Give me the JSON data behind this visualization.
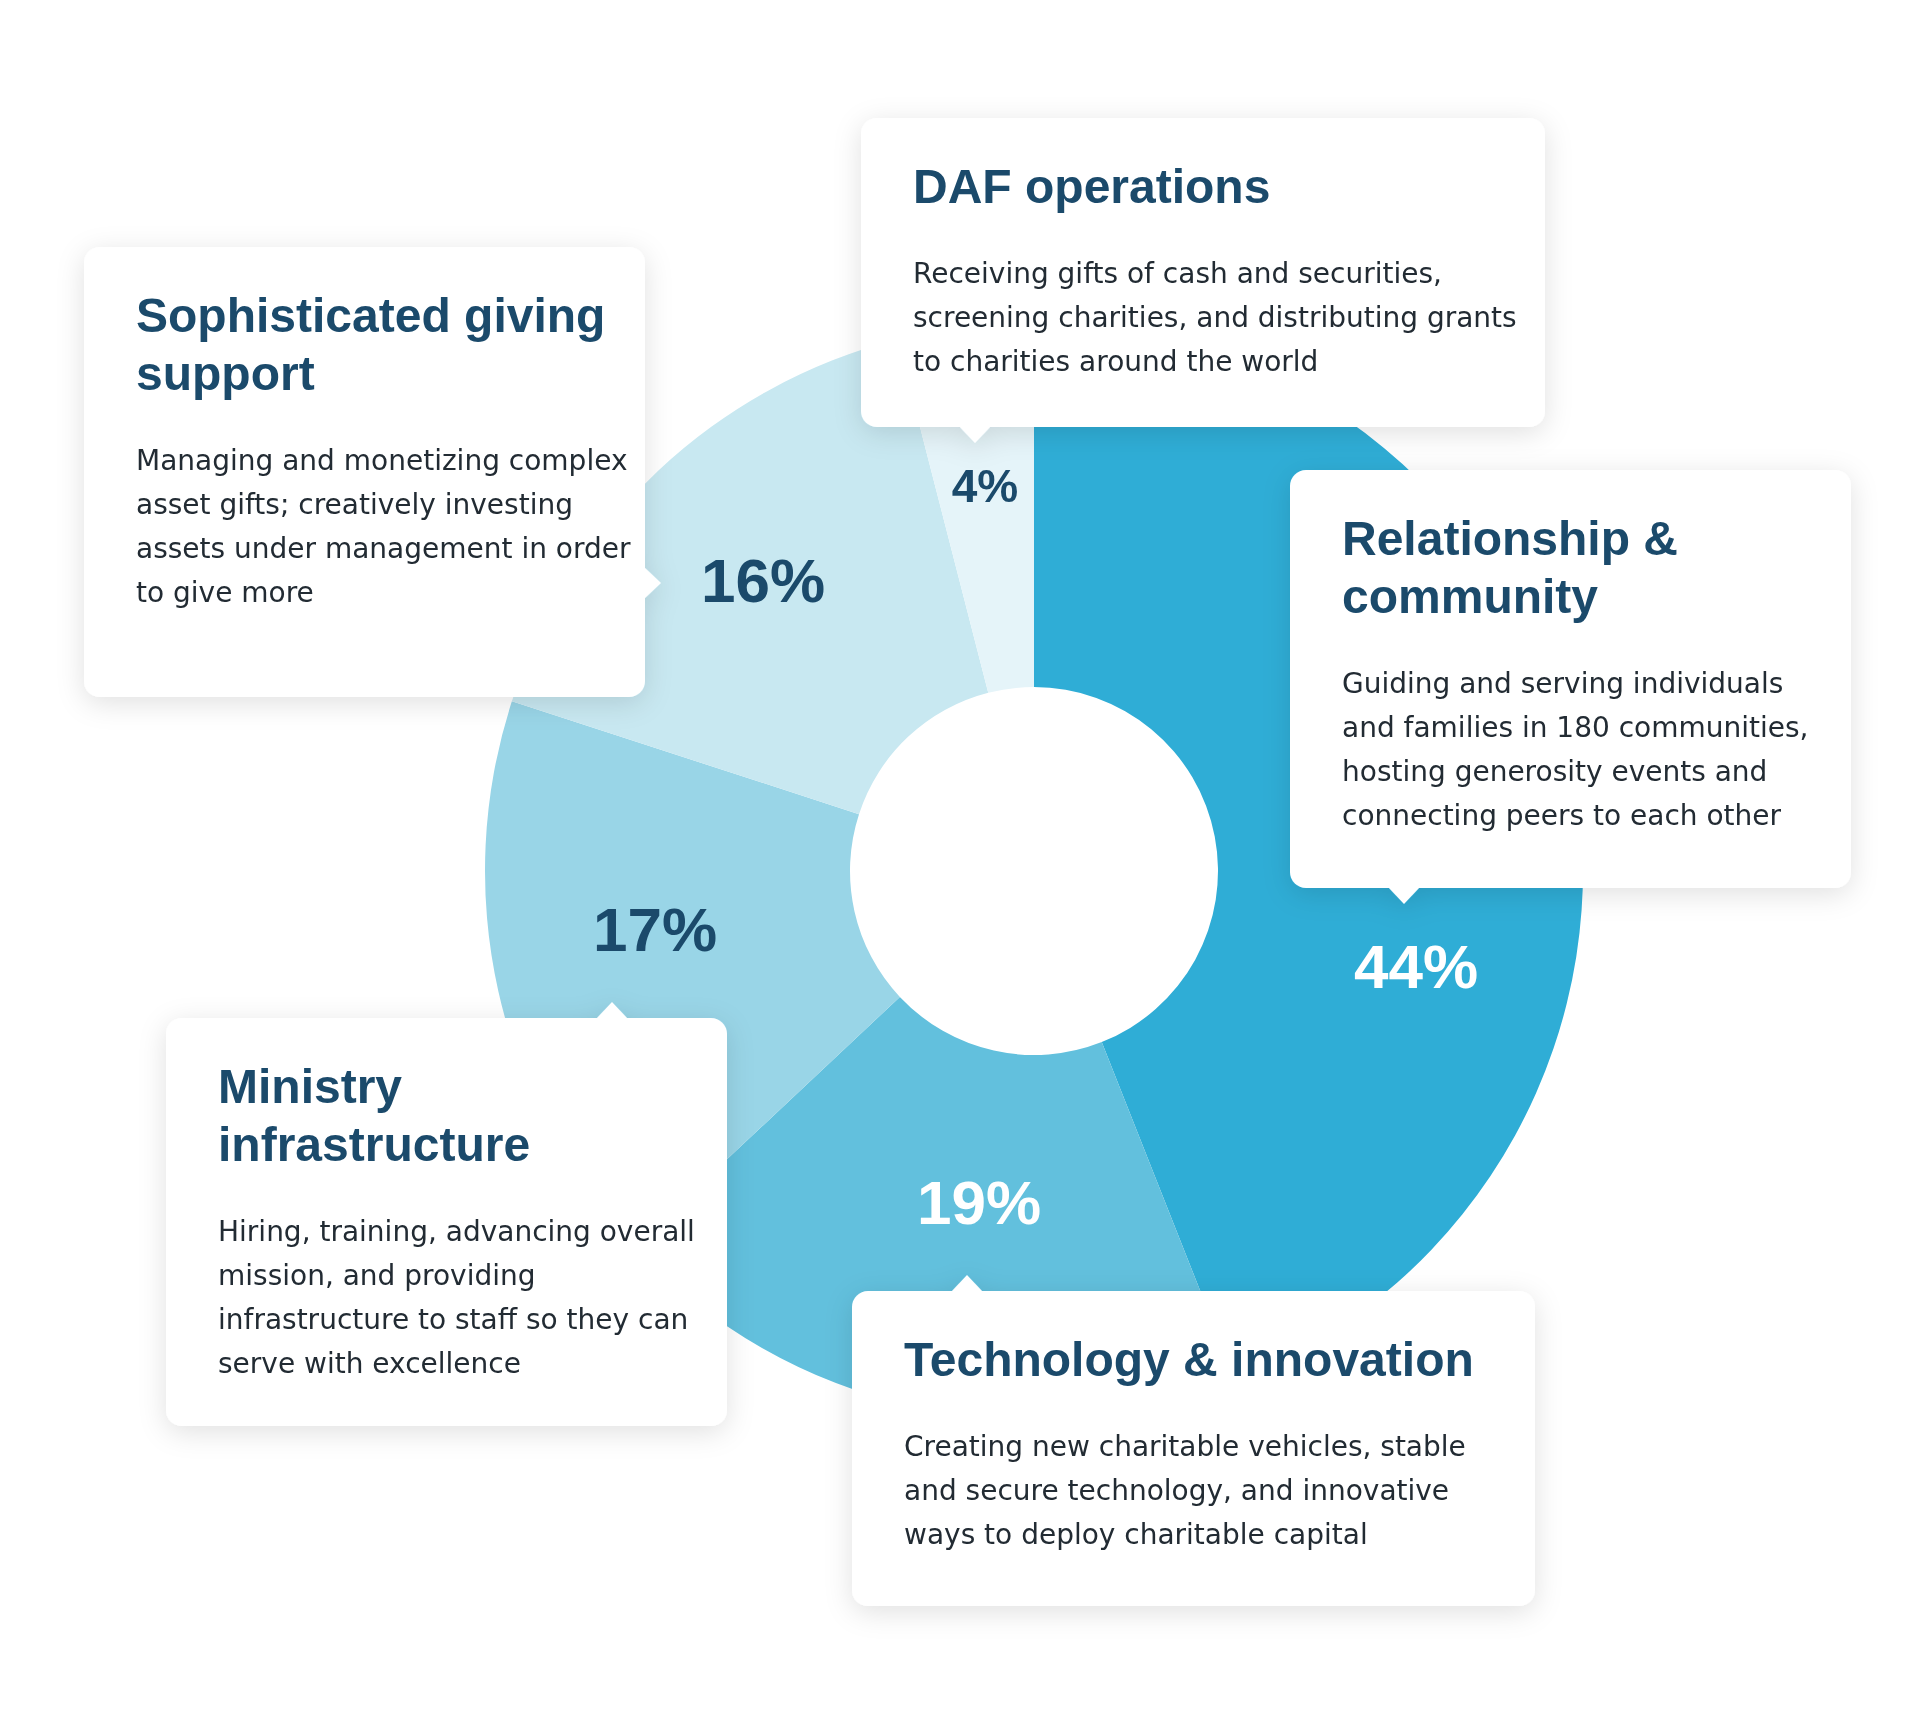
{
  "chart_data": {
    "type": "donut",
    "categories": [
      "Relationship & community",
      "Technology & innovation",
      "Ministry infrastructure",
      "Sophisticated giving support",
      "DAF operations"
    ],
    "values": [
      44,
      19,
      17,
      16,
      4
    ],
    "colors": [
      "#2fadd6",
      "#62c0dd",
      "#99d5e7",
      "#c8e8f1",
      "#e5f4f9"
    ],
    "value_labels": [
      "44%",
      "19%",
      "17%",
      "16%",
      "4%"
    ],
    "annotations": [
      "Guiding and serving individuals and families in 180 communities, hosting generosity events and connecting peers to each other",
      "Creating new charitable vehicles, stable and secure technology, and innovative ways to deploy charitable capital",
      "Hiring, training, advancing overall mission, and providing infrastructure to staff so they can serve with excellence",
      "Managing and monetizing complex asset gifts; creatively investing assets under management in order to give more",
      "Receiving gifts of cash and securities, screening charities, and distributing grants to charities around the world"
    ]
  }
}
